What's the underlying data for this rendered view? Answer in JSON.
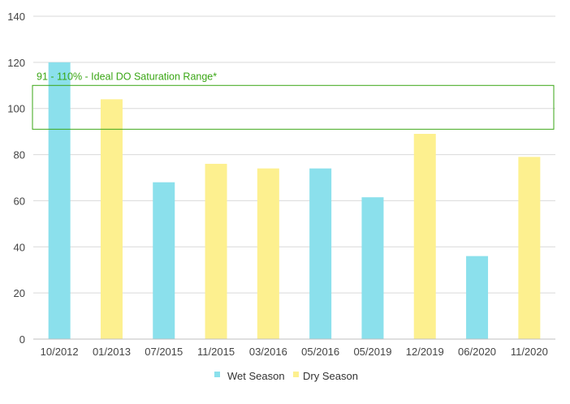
{
  "chart_data": {
    "type": "bar",
    "categories": [
      "10/2012",
      "01/2013",
      "07/2015",
      "11/2015",
      "03/2016",
      "05/2016",
      "05/2019",
      "12/2019",
      "06/2020",
      "11/2020"
    ],
    "values": [
      120,
      104,
      68,
      76,
      74,
      74,
      61.5,
      89,
      36,
      79
    ],
    "season": [
      "Wet Season",
      "Dry Season",
      "Wet Season",
      "Dry Season",
      "Dry Season",
      "Wet Season",
      "Wet Season",
      "Dry Season",
      "Wet Season",
      "Dry Season"
    ],
    "ylim": [
      0,
      140
    ],
    "yticks": [
      0,
      20,
      40,
      60,
      80,
      100,
      120,
      140
    ],
    "grid": true,
    "legend": {
      "placement": "bottom",
      "entries": [
        {
          "name": "Wet Season",
          "color": "#8be0ec"
        },
        {
          "name": "Dry Season",
          "color": "#fdf08f"
        }
      ]
    },
    "band": {
      "low": 91,
      "high": 110,
      "label": "91 - 110% - Ideal DO Saturation Range*",
      "color": "#3aa615"
    }
  }
}
